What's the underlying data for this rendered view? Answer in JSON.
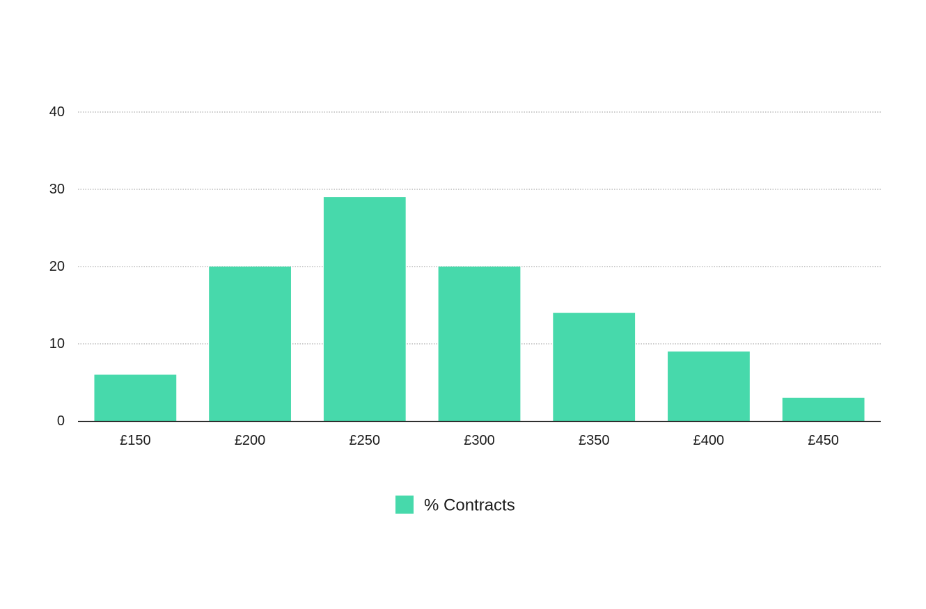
{
  "chart_data": {
    "type": "bar",
    "categories": [
      "£150",
      "£200",
      "£250",
      "£300",
      "£350",
      "£400",
      "£450"
    ],
    "series": [
      {
        "name": "% Contracts",
        "values": [
          6,
          20,
          29,
          20,
          14,
          9,
          3
        ],
        "color": "#47d9ab"
      }
    ],
    "ylim": [
      0,
      40
    ],
    "yticks": [
      0,
      10,
      20,
      30,
      40
    ],
    "grid": true,
    "grid_style": "dotted",
    "legend_position": "bottom-center"
  }
}
